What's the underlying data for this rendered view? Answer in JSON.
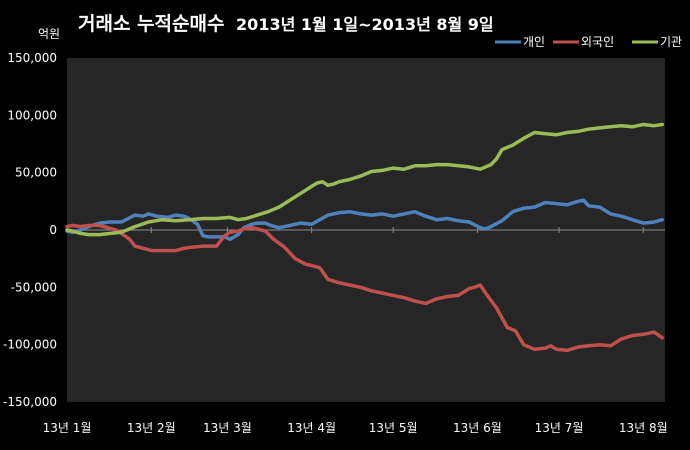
{
  "chart_data": {
    "type": "line",
    "title_main": "거래소 누적순매수",
    "title_period": "2013년 1월 1일~2013년 8월 9일",
    "unit_label": "억원",
    "ylim": [
      -150000,
      150000
    ],
    "y_ticks": [
      "150,000",
      "100,000",
      "50,000",
      "0",
      "-50,000",
      "-100,000",
      "-150,000"
    ],
    "y_tick_values": [
      150000,
      100000,
      50000,
      0,
      -50000,
      -100000,
      -150000
    ],
    "x_tick_labels": [
      "13년 1월",
      "13년 2월",
      "13년 3월",
      "13년 4월",
      "13년 5월",
      "13년 6월",
      "13년 7월",
      "13년 8월"
    ],
    "x_tick_days": [
      0,
      31,
      59,
      90,
      120,
      151,
      181,
      212
    ],
    "x_range_days": [
      0,
      220
    ],
    "grid": false,
    "legend_position": "top-right",
    "series": [
      {
        "name": "개인",
        "color": "#4f81bd",
        "x": [
          0,
          2,
          5,
          8,
          12,
          16,
          20,
          25,
          28,
          30,
          33,
          37,
          40,
          43,
          45,
          48,
          50,
          52,
          55,
          58,
          60,
          63,
          65,
          68,
          70,
          73,
          75,
          78,
          82,
          86,
          90,
          93,
          96,
          100,
          104,
          108,
          112,
          116,
          120,
          124,
          128,
          132,
          136,
          140,
          144,
          148,
          152,
          154,
          156,
          160,
          164,
          168,
          172,
          176,
          180,
          184,
          188,
          190,
          192,
          196,
          200,
          204,
          208,
          212,
          216,
          219
        ],
        "y": [
          -1000,
          -2000,
          0,
          3000,
          6000,
          7000,
          7000,
          13000,
          12000,
          14000,
          12000,
          11000,
          13000,
          12000,
          10000,
          5000,
          -5000,
          -6000,
          -6000,
          -6000,
          -8000,
          -4000,
          2000,
          5000,
          6000,
          6000,
          4000,
          2000,
          4000,
          6000,
          5000,
          9000,
          13000,
          15000,
          16000,
          14000,
          13000,
          14000,
          12000,
          14000,
          16000,
          12000,
          9000,
          10000,
          8000,
          7000,
          2000,
          1000,
          3000,
          8000,
          16000,
          19000,
          20000,
          24000,
          23000,
          22000,
          25000,
          26000,
          21000,
          20000,
          14000,
          12000,
          9000,
          6000,
          7000,
          9000
        ]
      },
      {
        "name": "외국인",
        "color": "#c0504d",
        "x": [
          0,
          2,
          5,
          8,
          12,
          15,
          18,
          20,
          23,
          25,
          28,
          31,
          35,
          40,
          43,
          46,
          50,
          55,
          58,
          60,
          63,
          65,
          68,
          70,
          73,
          76,
          80,
          84,
          88,
          90,
          93,
          96,
          100,
          104,
          108,
          112,
          116,
          120,
          124,
          128,
          132,
          136,
          140,
          144,
          148,
          150,
          152,
          154,
          158,
          162,
          165,
          168,
          172,
          176,
          178,
          180,
          184,
          188,
          192,
          196,
          200,
          204,
          208,
          212,
          216,
          219
        ],
        "y": [
          3000,
          4000,
          3000,
          4000,
          4000,
          2000,
          0,
          -3000,
          -8000,
          -14000,
          -16000,
          -18000,
          -18000,
          -18000,
          -16000,
          -15000,
          -14000,
          -14000,
          -5000,
          -2000,
          -1000,
          1000,
          2000,
          1000,
          -1000,
          -8000,
          -15000,
          -25000,
          -30000,
          -31000,
          -33000,
          -43000,
          -46000,
          -48000,
          -50000,
          -53000,
          -55000,
          -57000,
          -59000,
          -62000,
          -64000,
          -60000,
          -58000,
          -57000,
          -51000,
          -50000,
          -48000,
          -55000,
          -68000,
          -85000,
          -88000,
          -100000,
          -104000,
          -103000,
          -101000,
          -104000,
          -105000,
          -102000,
          -101000,
          -100000,
          -101000,
          -95000,
          -92000,
          -91000,
          -89000,
          -94000
        ]
      },
      {
        "name": "기관",
        "color": "#9bbb59",
        "x": [
          0,
          2,
          5,
          8,
          12,
          16,
          20,
          25,
          30,
          35,
          40,
          45,
          50,
          55,
          60,
          63,
          66,
          70,
          74,
          78,
          82,
          86,
          90,
          92,
          94,
          96,
          98,
          100,
          104,
          108,
          112,
          116,
          120,
          124,
          128,
          132,
          136,
          140,
          144,
          148,
          152,
          156,
          158,
          160,
          164,
          168,
          172,
          176,
          180,
          184,
          188,
          192,
          196,
          200,
          204,
          208,
          212,
          216,
          219
        ],
        "y": [
          0,
          -1000,
          -3000,
          -4000,
          -4000,
          -3000,
          -2000,
          3000,
          7000,
          9000,
          8000,
          9000,
          10000,
          10000,
          11000,
          9000,
          10000,
          13000,
          16000,
          20000,
          26000,
          32000,
          38000,
          41000,
          42000,
          39000,
          40000,
          42000,
          44000,
          47000,
          51000,
          52000,
          54000,
          53000,
          56000,
          56000,
          57000,
          57000,
          56000,
          55000,
          53000,
          57000,
          62000,
          70000,
          74000,
          80000,
          85000,
          84000,
          83000,
          85000,
          86000,
          88000,
          89000,
          90000,
          91000,
          90000,
          92000,
          91000,
          92000
        ]
      }
    ]
  }
}
